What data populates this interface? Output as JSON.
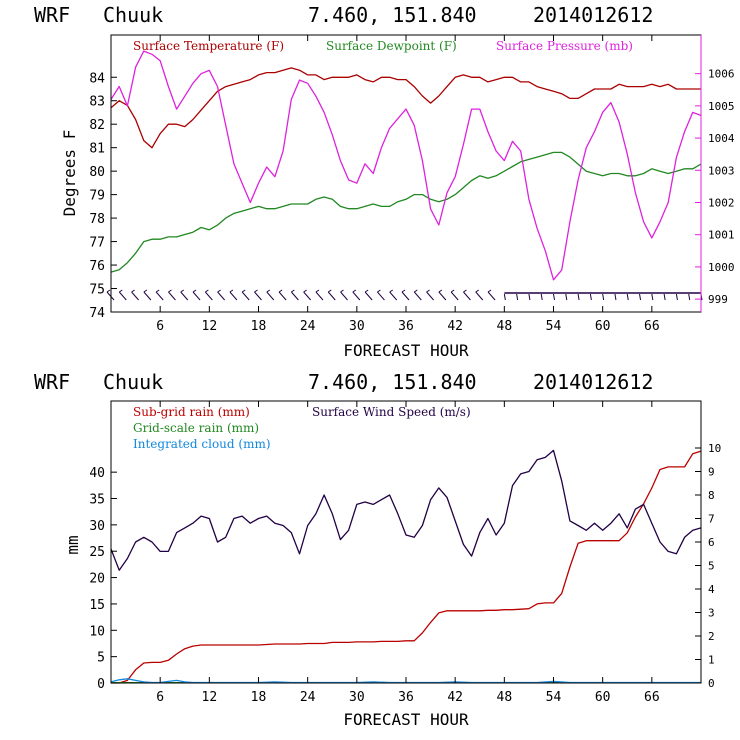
{
  "chart_data": [
    {
      "type": "line",
      "header": {
        "model": "WRF",
        "station": "Chuuk",
        "coords": "7.460, 151.840",
        "run": "2014012612"
      },
      "legend": [
        "Surface Temperature (F)",
        "Surface Dewpoint (F)",
        "Surface Pressure (mb)"
      ],
      "xlabel": "FORECAST HOUR",
      "ylabel": "Degrees F",
      "xlim": [
        0,
        72
      ],
      "xticks": [
        "6",
        "12",
        "18",
        "24",
        "30",
        "36",
        "42",
        "48",
        "54",
        "60",
        "66"
      ],
      "ylim": [
        74,
        85.8
      ],
      "yticks": [
        "74",
        "75",
        "76",
        "77",
        "78",
        "79",
        "80",
        "81",
        "82",
        "83",
        "84"
      ],
      "y2lim": [
        998.6,
        1007.2
      ],
      "y2ticks": [
        "999",
        "1000",
        "1001",
        "1002",
        "1003",
        "1004",
        "1005",
        "1006"
      ],
      "colors": {
        "temperature": "#aa0000",
        "dewpoint": "#228822",
        "pressure": "#dd22dd",
        "barbs": "#220044"
      },
      "series": [
        {
          "name": "Surface Temperature (F)",
          "axis": "left",
          "x": [
            0,
            1,
            2,
            3,
            4,
            5,
            6,
            7,
            8,
            9,
            10,
            11,
            12,
            13,
            14,
            15,
            16,
            17,
            18,
            19,
            20,
            21,
            22,
            23,
            24,
            25,
            26,
            27,
            28,
            29,
            30,
            31,
            32,
            33,
            34,
            35,
            36,
            37,
            38,
            39,
            40,
            41,
            42,
            43,
            44,
            45,
            46,
            47,
            48,
            49,
            50,
            51,
            52,
            53,
            54,
            55,
            56,
            57,
            58,
            59,
            60,
            61,
            62,
            63,
            64,
            65,
            66,
            67,
            68,
            69,
            70,
            71,
            72
          ],
          "y": [
            82.7,
            83.0,
            82.8,
            82.2,
            81.3,
            81.0,
            81.6,
            82.0,
            82.0,
            81.9,
            82.2,
            82.6,
            83.0,
            83.4,
            83.6,
            83.7,
            83.8,
            83.9,
            84.1,
            84.2,
            84.2,
            84.3,
            84.4,
            84.3,
            84.1,
            84.1,
            83.9,
            84.0,
            84.0,
            84.0,
            84.1,
            83.9,
            83.8,
            84.0,
            84.0,
            83.9,
            83.9,
            83.6,
            83.2,
            82.9,
            83.2,
            83.6,
            84.0,
            84.1,
            84.0,
            84.0,
            83.8,
            83.9,
            84.0,
            84.0,
            83.8,
            83.8,
            83.6,
            83.5,
            83.4,
            83.3,
            83.1,
            83.1,
            83.3,
            83.5,
            83.5,
            83.5,
            83.7,
            83.6,
            83.6,
            83.6,
            83.7,
            83.6,
            83.7,
            83.5,
            83.5,
            83.5,
            83.5
          ]
        },
        {
          "name": "Surface Dewpoint (F)",
          "axis": "left",
          "x": [
            0,
            1,
            2,
            3,
            4,
            5,
            6,
            7,
            8,
            9,
            10,
            11,
            12,
            13,
            14,
            15,
            16,
            17,
            18,
            19,
            20,
            21,
            22,
            23,
            24,
            25,
            26,
            27,
            28,
            29,
            30,
            31,
            32,
            33,
            34,
            35,
            36,
            37,
            38,
            39,
            40,
            41,
            42,
            43,
            44,
            45,
            46,
            47,
            48,
            49,
            50,
            51,
            52,
            53,
            54,
            55,
            56,
            57,
            58,
            59,
            60,
            61,
            62,
            63,
            64,
            65,
            66,
            67,
            68,
            69,
            70,
            71,
            72
          ],
          "y": [
            75.7,
            75.8,
            76.1,
            76.5,
            77.0,
            77.1,
            77.1,
            77.2,
            77.2,
            77.3,
            77.4,
            77.6,
            77.5,
            77.7,
            78.0,
            78.2,
            78.3,
            78.4,
            78.5,
            78.4,
            78.4,
            78.5,
            78.6,
            78.6,
            78.6,
            78.8,
            78.9,
            78.8,
            78.5,
            78.4,
            78.4,
            78.5,
            78.6,
            78.5,
            78.5,
            78.7,
            78.8,
            79.0,
            79.0,
            78.8,
            78.7,
            78.8,
            79.0,
            79.3,
            79.6,
            79.8,
            79.7,
            79.8,
            80.0,
            80.2,
            80.4,
            80.5,
            80.6,
            80.7,
            80.8,
            80.8,
            80.6,
            80.3,
            80.0,
            79.9,
            79.8,
            79.9,
            79.9,
            79.8,
            79.8,
            79.9,
            80.1,
            80.0,
            79.9,
            80.0,
            80.1,
            80.1,
            80.3
          ]
        },
        {
          "name": "Surface Pressure (mb)",
          "axis": "right",
          "x": [
            0,
            1,
            2,
            3,
            4,
            5,
            6,
            7,
            8,
            9,
            10,
            11,
            12,
            13,
            14,
            15,
            16,
            17,
            18,
            19,
            20,
            21,
            22,
            23,
            24,
            25,
            26,
            27,
            28,
            29,
            30,
            31,
            32,
            33,
            34,
            35,
            36,
            37,
            38,
            39,
            40,
            41,
            42,
            43,
            44,
            45,
            46,
            47,
            48,
            49,
            50,
            51,
            52,
            53,
            54,
            55,
            56,
            57,
            58,
            59,
            60,
            61,
            62,
            63,
            64,
            65,
            66,
            67,
            68,
            69,
            70,
            71,
            72
          ],
          "y": [
            1005.2,
            1005.6,
            1005.0,
            1006.2,
            1006.7,
            1006.6,
            1006.4,
            1005.6,
            1004.9,
            1005.3,
            1005.7,
            1006.0,
            1006.1,
            1005.6,
            1004.4,
            1003.2,
            1002.6,
            1002.0,
            1002.6,
            1003.1,
            1002.8,
            1003.6,
            1005.2,
            1005.8,
            1005.7,
            1005.3,
            1004.8,
            1004.1,
            1003.3,
            1002.7,
            1002.6,
            1003.2,
            1002.9,
            1003.7,
            1004.3,
            1004.6,
            1004.9,
            1004.4,
            1003.3,
            1001.8,
            1001.3,
            1002.3,
            1002.8,
            1003.8,
            1004.9,
            1004.9,
            1004.2,
            1003.6,
            1003.3,
            1003.9,
            1003.6,
            1002.1,
            1001.2,
            1000.5,
            999.6,
            999.9,
            1001.4,
            1002.7,
            1003.7,
            1004.2,
            1004.8,
            1005.1,
            1004.5,
            1003.5,
            1002.3,
            1001.4,
            1000.9,
            1001.4,
            1002.0,
            1003.4,
            1004.2,
            1004.8,
            1004.7
          ]
        }
      ]
    },
    {
      "type": "line",
      "header": {
        "model": "WRF",
        "station": "Chuuk",
        "coords": "7.460, 151.840",
        "run": "2014012612"
      },
      "legend": [
        "Sub-grid rain (mm)",
        "Surface Wind Speed (m/s)",
        "Grid-scale rain (mm)",
        "Integrated cloud (mm)"
      ],
      "xlabel": "FORECAST HOUR",
      "ylabel": "mm",
      "xlim": [
        0,
        72
      ],
      "xticks": [
        "6",
        "12",
        "18",
        "24",
        "30",
        "36",
        "42",
        "48",
        "54",
        "60",
        "66"
      ],
      "ylim": [
        0,
        53.5
      ],
      "yticks": [
        "0",
        "5",
        "10",
        "15",
        "20",
        "25",
        "30",
        "35",
        "40"
      ],
      "y2lim": [
        0,
        12.0
      ],
      "y2ticks": [
        "0",
        "1",
        "2",
        "3",
        "4",
        "5",
        "6",
        "7",
        "8",
        "9",
        "10"
      ],
      "colors": {
        "subgrid": "#bb0000",
        "wind": "#220044",
        "gridscale": "#228822",
        "cloud": "#1188dd"
      },
      "series": [
        {
          "name": "Sub-grid rain (mm)",
          "axis": "left",
          "x": [
            0,
            1,
            2,
            3,
            4,
            5,
            6,
            7,
            8,
            9,
            10,
            11,
            12,
            13,
            14,
            15,
            16,
            17,
            18,
            19,
            20,
            21,
            22,
            23,
            24,
            25,
            26,
            27,
            28,
            29,
            30,
            31,
            32,
            33,
            34,
            35,
            36,
            37,
            38,
            39,
            40,
            41,
            42,
            43,
            44,
            45,
            46,
            47,
            48,
            49,
            50,
            51,
            52,
            53,
            54,
            55,
            56,
            57,
            58,
            59,
            60,
            61,
            62,
            63,
            64,
            65,
            66,
            67,
            68,
            69,
            70,
            71,
            72
          ],
          "y": [
            0,
            0,
            0.5,
            2.5,
            3.8,
            3.9,
            3.9,
            4.3,
            5.5,
            6.5,
            7.0,
            7.2,
            7.2,
            7.2,
            7.2,
            7.2,
            7.2,
            7.2,
            7.2,
            7.3,
            7.4,
            7.4,
            7.4,
            7.4,
            7.5,
            7.5,
            7.5,
            7.7,
            7.7,
            7.7,
            7.8,
            7.8,
            7.8,
            7.9,
            7.9,
            7.9,
            8.0,
            8.0,
            9.5,
            11.5,
            13.3,
            13.7,
            13.7,
            13.7,
            13.7,
            13.7,
            13.8,
            13.8,
            13.9,
            13.9,
            14.0,
            14.1,
            15.0,
            15.2,
            15.2,
            17.0,
            22.0,
            26.5,
            27.0,
            27.0,
            27.0,
            27.0,
            27.0,
            28.5,
            31.5,
            34.0,
            37.0,
            40.5,
            41.0,
            41.0,
            41.0,
            43.5,
            44.0
          ]
        },
        {
          "name": "Surface Wind Speed (m/s)",
          "axis": "right",
          "x": [
            0,
            1,
            2,
            3,
            4,
            5,
            6,
            7,
            8,
            9,
            10,
            11,
            12,
            13,
            14,
            15,
            16,
            17,
            18,
            19,
            20,
            21,
            22,
            23,
            24,
            25,
            26,
            27,
            28,
            29,
            30,
            31,
            32,
            33,
            34,
            35,
            36,
            37,
            38,
            39,
            40,
            41,
            42,
            43,
            44,
            45,
            46,
            47,
            48,
            49,
            50,
            51,
            52,
            53,
            54,
            55,
            56,
            57,
            58,
            59,
            60,
            61,
            62,
            63,
            64,
            65,
            66,
            67,
            68,
            69,
            70,
            71,
            72
          ],
          "y": [
            5.7,
            4.8,
            5.3,
            6.0,
            6.2,
            6.0,
            5.6,
            5.6,
            6.4,
            6.6,
            6.8,
            7.1,
            7.0,
            6.0,
            6.2,
            7.0,
            7.1,
            6.8,
            7.0,
            7.1,
            6.8,
            6.7,
            6.4,
            5.5,
            6.7,
            7.2,
            8.0,
            7.2,
            6.1,
            6.5,
            7.6,
            7.7,
            7.6,
            7.8,
            8.0,
            7.2,
            6.3,
            6.2,
            6.7,
            7.8,
            8.3,
            7.9,
            6.9,
            5.9,
            5.4,
            6.4,
            7.0,
            6.3,
            6.8,
            8.4,
            8.9,
            9.0,
            9.5,
            9.6,
            9.9,
            8.6,
            6.9,
            6.7,
            6.5,
            6.8,
            6.5,
            6.8,
            7.2,
            6.6,
            7.4,
            7.6,
            6.8,
            6.0,
            5.6,
            5.5,
            6.2,
            6.5,
            6.6
          ]
        },
        {
          "name": "Grid-scale rain (mm)",
          "axis": "left",
          "x": [
            0,
            12,
            24,
            36,
            48,
            60,
            72
          ],
          "y": [
            0.05,
            0.05,
            0.05,
            0.05,
            0.05,
            0.05,
            0.05
          ]
        },
        {
          "name": "Integrated cloud (mm)",
          "axis": "left",
          "x": [
            0,
            1,
            2,
            3,
            4,
            5,
            6,
            7,
            8,
            9,
            10,
            11,
            12,
            14,
            16,
            18,
            20,
            22,
            24,
            26,
            28,
            30,
            32,
            34,
            36,
            38,
            40,
            42,
            44,
            46,
            48,
            50,
            52,
            54,
            56,
            58,
            60,
            62,
            64,
            66,
            68,
            70,
            72
          ],
          "y": [
            0.2,
            0.6,
            0.8,
            0.5,
            0.2,
            0.1,
            0.1,
            0.3,
            0.5,
            0.2,
            0.1,
            0.1,
            0.1,
            0.1,
            0.1,
            0.1,
            0.2,
            0.1,
            0.1,
            0.1,
            0.1,
            0.1,
            0.2,
            0.1,
            0.1,
            0.1,
            0.1,
            0.2,
            0.1,
            0.1,
            0.1,
            0.1,
            0.1,
            0.3,
            0.1,
            0.1,
            0.1,
            0.1,
            0.1,
            0.1,
            0.1,
            0.1,
            0.1
          ]
        }
      ]
    }
  ]
}
